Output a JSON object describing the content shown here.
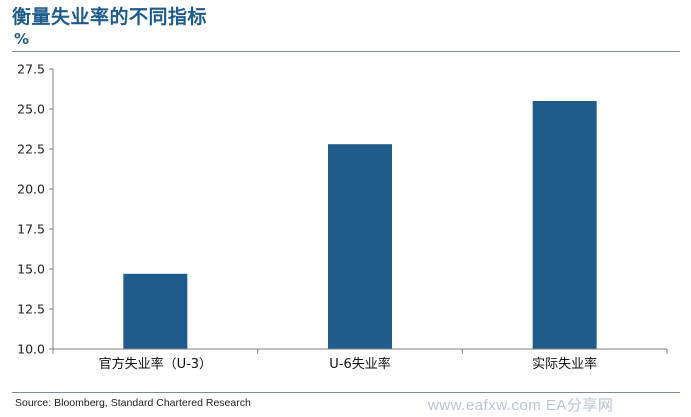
{
  "title": "衡量失业率的不同指标",
  "unit_label": "%",
  "source": "Source: Bloomberg, Standard Chartered Research",
  "watermark": "www.eafxw.com  EA分享网",
  "colors": {
    "bar": "#1f5c8c",
    "title": "#1f5c8c",
    "axis": "#7f7f7f"
  },
  "chart_data": {
    "type": "bar",
    "categories": [
      "官方失业率（U-3）",
      "U-6失业率",
      "实际失业率"
    ],
    "values": [
      14.7,
      22.8,
      25.5
    ],
    "ylim": [
      10.0,
      27.5
    ],
    "yticks": [
      "10.0",
      "12.5",
      "15.0",
      "17.5",
      "20.0",
      "22.5",
      "25.0",
      "27.5"
    ],
    "grid": false,
    "legend": "none"
  }
}
